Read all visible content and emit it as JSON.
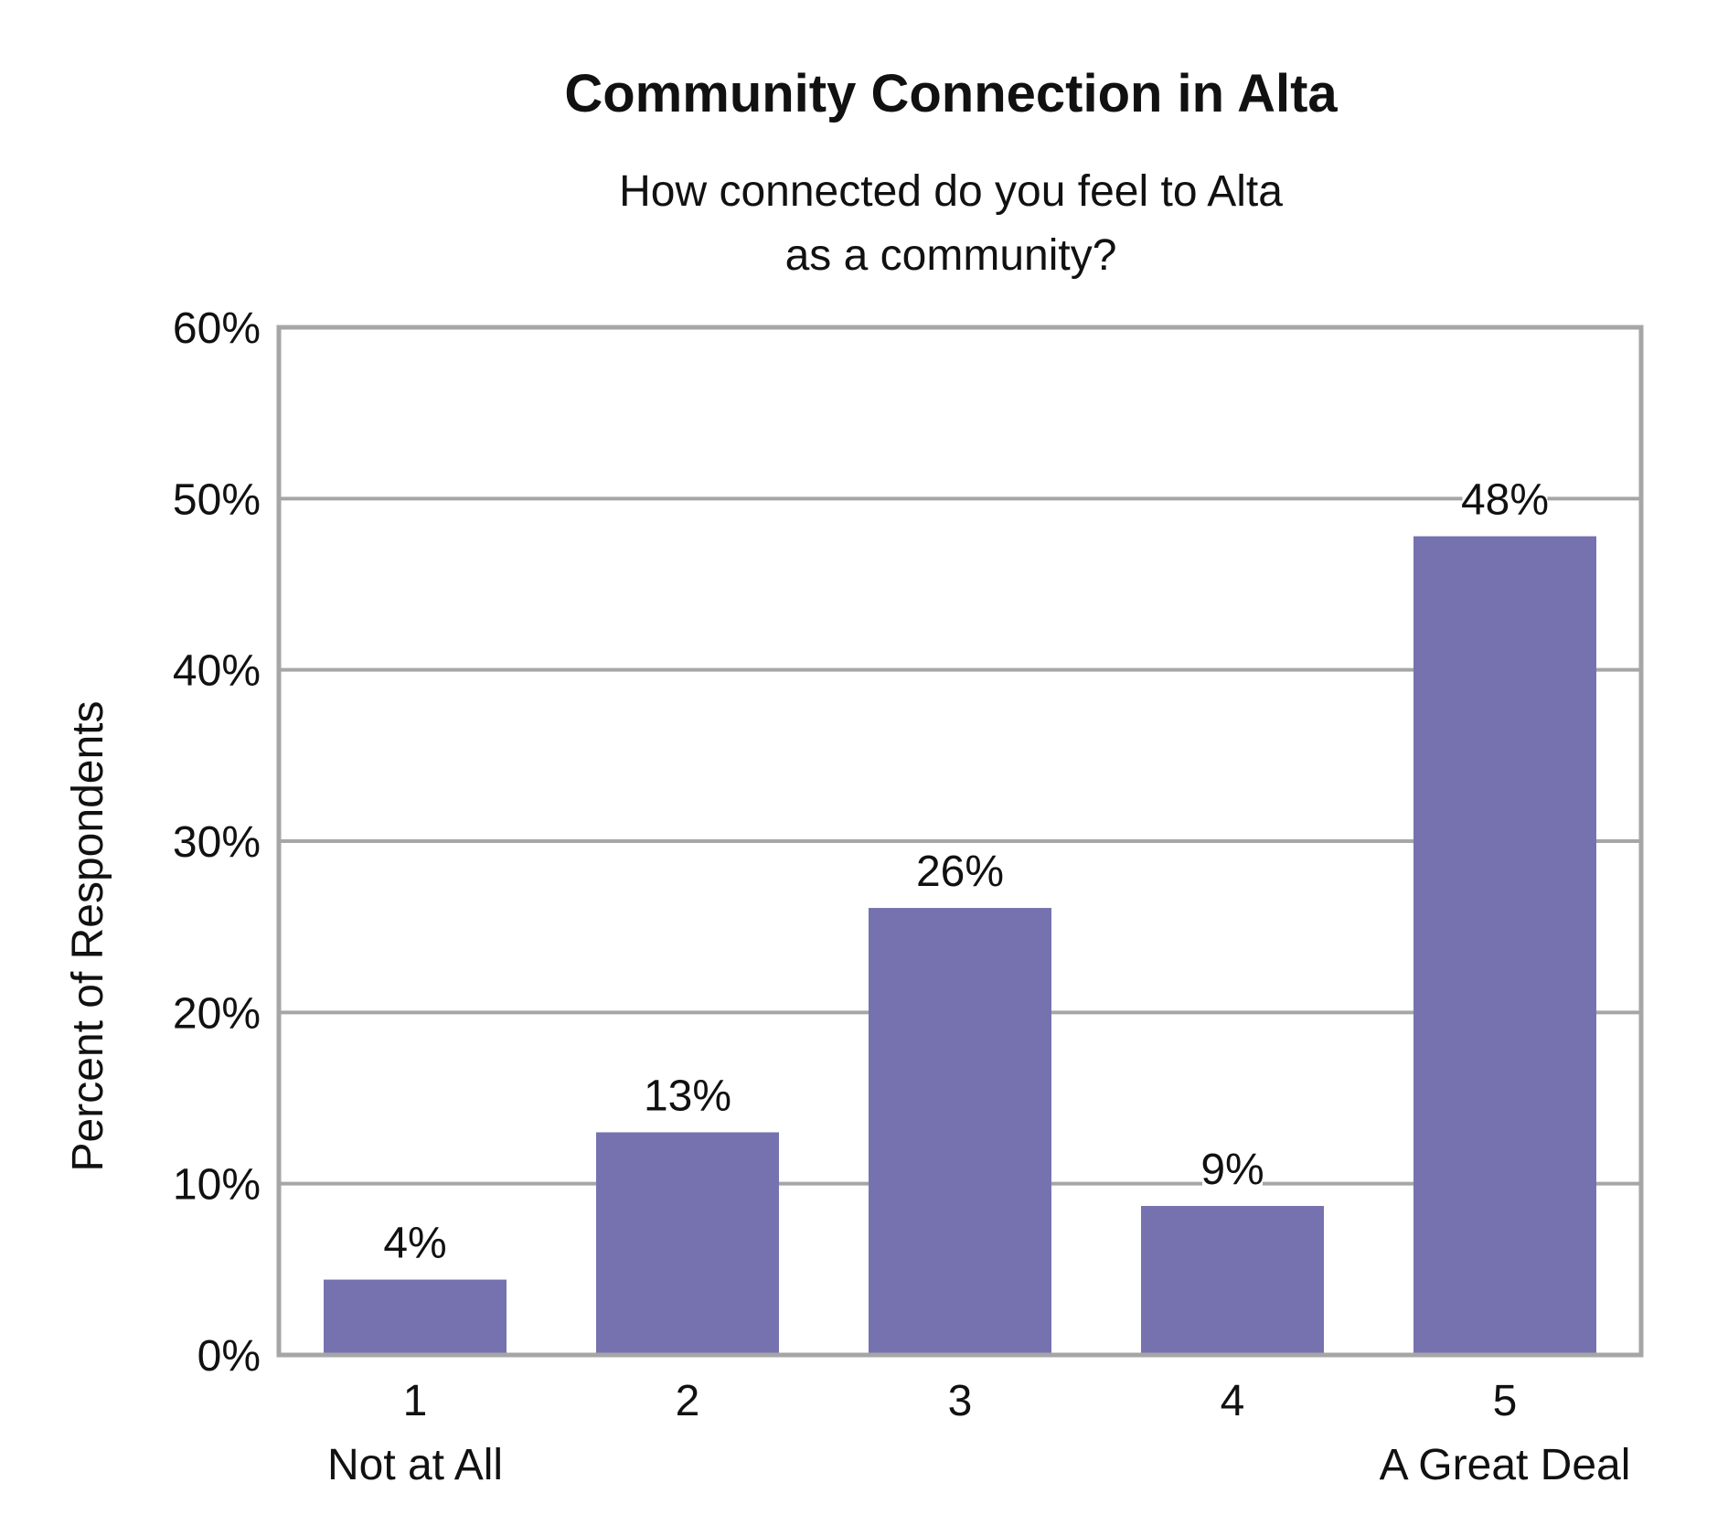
{
  "chart_data": {
    "type": "bar",
    "title": "Community Connection in Alta",
    "subtitle": [
      "How connected do you feel to Alta",
      "as a community?"
    ],
    "ylabel": "Percent of Respondents",
    "xlabel": "",
    "ylim": [
      0,
      60
    ],
    "yticks": [
      0,
      10,
      20,
      30,
      40,
      50,
      60
    ],
    "ytick_labels": [
      "0%",
      "10%",
      "20%",
      "30%",
      "40%",
      "50%",
      "60%"
    ],
    "grid": true,
    "categories": [
      "1",
      "2",
      "3",
      "4",
      "5"
    ],
    "category_sublabels": [
      "Not at All",
      "",
      "",
      "",
      "A Great Deal"
    ],
    "values": [
      4.4,
      13.0,
      26.1,
      8.7,
      47.8
    ],
    "data_labels": [
      "4%",
      "13%",
      "26%",
      "9%",
      "48%"
    ],
    "bar_color": "#7672b0",
    "grid_color": "#a6a6a6",
    "frame_color": "#a6a6a6"
  }
}
